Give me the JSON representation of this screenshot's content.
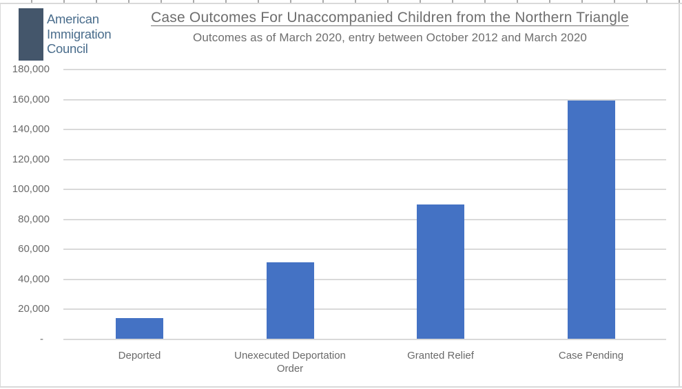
{
  "logo": {
    "line1": "American",
    "line2": "Immigration",
    "line3": "Council"
  },
  "header": {
    "title": "Case Outcomes For Unaccompanied Children from the Northern Triangle",
    "subtitle": "Outcomes as of March 2020, entry between October 2012 and March 2020"
  },
  "chart_data": {
    "type": "bar",
    "title": "Case Outcomes For Unaccompanied Children from the Northern Triangle",
    "subtitle": "Outcomes as of March 2020, entry between October 2012 and March 2020",
    "categories": [
      "Deported",
      "Unexecuted Deportation Order",
      "Granted Relief",
      "Case Pending"
    ],
    "values": [
      14000,
      51000,
      89500,
      159000
    ],
    "xlabel": "",
    "ylabel": "",
    "ylim": [
      0,
      180000
    ],
    "ytick_step": 20000,
    "ytick_labels": [
      "-",
      "20,000",
      "40,000",
      "60,000",
      "80,000",
      "100,000",
      "120,000",
      "140,000",
      "160,000",
      "180,000"
    ],
    "grid": true,
    "legend_position": "none",
    "bar_color": "#4472C4",
    "gridline_color": "#D9D9D9",
    "label_color": "#696969",
    "title_color": "#6E6E6E"
  }
}
